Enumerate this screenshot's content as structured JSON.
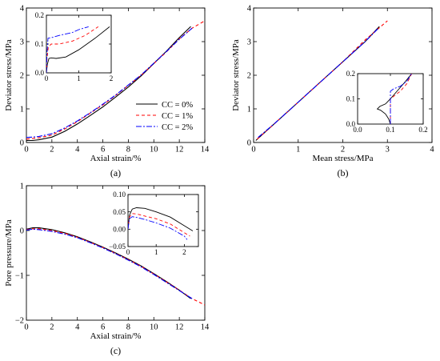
{
  "chart_data": [
    {
      "panel_label": "(a)",
      "type": "line",
      "xlabel": "Axial strain/%",
      "ylabel": "Deviator stress/MPa",
      "xlim": [
        0,
        14
      ],
      "ylim": [
        0,
        4
      ],
      "xticks": [
        "0",
        "2",
        "4",
        "6",
        "8",
        "10",
        "12",
        "14"
      ],
      "yticks": [
        "0",
        "1",
        "2",
        "3",
        "4"
      ],
      "legend_placement": "right-middle",
      "series": [
        {
          "name": "CC = 0%",
          "color": "#000000",
          "dash": "solid",
          "x": [
            0,
            0.5,
            1,
            2,
            3,
            4,
            5,
            6,
            7,
            8,
            9,
            10,
            11,
            12,
            12.9
          ],
          "y": [
            0.06,
            0.06,
            0.08,
            0.16,
            0.33,
            0.55,
            0.8,
            1.06,
            1.35,
            1.65,
            1.98,
            2.35,
            2.72,
            3.12,
            3.45
          ]
        },
        {
          "name": "CC = 1%",
          "color": "#ff0000",
          "dash": "dashed",
          "x": [
            0,
            0.5,
            1,
            2,
            3,
            4,
            5,
            6,
            7,
            8,
            9,
            10,
            11,
            12,
            13,
            14
          ],
          "y": [
            0.1,
            0.12,
            0.14,
            0.22,
            0.4,
            0.62,
            0.87,
            1.12,
            1.4,
            1.7,
            2.0,
            2.35,
            2.7,
            3.08,
            3.4,
            3.62
          ]
        },
        {
          "name": "CC = 2%",
          "color": "#0000ff",
          "dash": "dashdot",
          "x": [
            0,
            0.5,
            1,
            2,
            3,
            4,
            5,
            6,
            7,
            8,
            9,
            10,
            11,
            12,
            13
          ],
          "y": [
            0.15,
            0.16,
            0.18,
            0.26,
            0.43,
            0.64,
            0.88,
            1.14,
            1.41,
            1.71,
            2.01,
            2.36,
            2.71,
            3.07,
            3.4
          ]
        }
      ],
      "inset": {
        "xlim": [
          0,
          2
        ],
        "ylim": [
          0,
          0.2
        ],
        "xticks": [
          "0",
          "1",
          "2"
        ],
        "yticks": [
          "0.0",
          "0.1",
          "0.2"
        ],
        "series": [
          {
            "name": "CC = 0%",
            "x": [
              0,
              0.03,
              0.08,
              0.15,
              0.3,
              0.6,
              1.0,
              1.5,
              1.95
            ],
            "y": [
              0,
              0.03,
              0.05,
              0.052,
              0.05,
              0.055,
              0.08,
              0.12,
              0.16
            ]
          },
          {
            "name": "CC = 1%",
            "x": [
              0,
              0.02,
              0.06,
              0.15,
              0.4,
              0.8,
              1.2,
              1.6
            ],
            "y": [
              0,
              0.05,
              0.09,
              0.1,
              0.1,
              0.11,
              0.13,
              0.16
            ]
          },
          {
            "name": "CC = 2%",
            "x": [
              0,
              0.02,
              0.05,
              0.15,
              0.4,
              0.8,
              1.0,
              1.3
            ],
            "y": [
              0,
              0.07,
              0.12,
              0.122,
              0.13,
              0.14,
              0.15,
              0.16
            ]
          }
        ]
      }
    },
    {
      "panel_label": "(b)",
      "type": "line",
      "xlabel": "Mean stress/MPa",
      "ylabel": "Deviator stress/MPa",
      "xlim": [
        0,
        4
      ],
      "ylim": [
        0,
        4
      ],
      "xticks": [
        "0",
        "1",
        "2",
        "3",
        "4"
      ],
      "yticks": [
        "0",
        "1",
        "2",
        "3",
        "4"
      ],
      "series": [
        {
          "name": "CC = 0%",
          "x": [
            0.05,
            0.5,
            1.0,
            1.5,
            2.0,
            2.5,
            2.82
          ],
          "y": [
            0.06,
            0.6,
            1.2,
            1.8,
            2.4,
            3.0,
            3.45
          ]
        },
        {
          "name": "CC = 1%",
          "x": [
            0.08,
            0.5,
            1.0,
            1.5,
            2.0,
            2.5,
            3.0
          ],
          "y": [
            0.1,
            0.6,
            1.2,
            1.8,
            2.4,
            3.05,
            3.62
          ]
        },
        {
          "name": "CC = 2%",
          "x": [
            0.1,
            0.5,
            1.0,
            1.5,
            2.0,
            2.5,
            2.8
          ],
          "y": [
            0.15,
            0.6,
            1.2,
            1.8,
            2.4,
            3.0,
            3.4
          ]
        }
      ],
      "inset": {
        "xlim": [
          0,
          0.2
        ],
        "ylim": [
          0,
          0.2
        ],
        "xticks": [
          "0.0",
          "0.1",
          "0.2"
        ],
        "yticks": [
          "0.0",
          "0.1",
          "0.2"
        ],
        "series": [
          {
            "name": "CC = 0%",
            "x": [
              0.1,
              0.095,
              0.085,
              0.07,
              0.06,
              0.068,
              0.085,
              0.1,
              0.12,
              0.14,
              0.165
            ],
            "y": [
              0,
              0.02,
              0.04,
              0.055,
              0.06,
              0.07,
              0.08,
              0.1,
              0.13,
              0.16,
              0.2
            ]
          },
          {
            "name": "CC = 1%",
            "x": [
              0.1,
              0.1,
              0.1,
              0.11,
              0.13,
              0.15,
              0.165
            ],
            "y": [
              0,
              0.05,
              0.1,
              0.11,
              0.13,
              0.16,
              0.2
            ]
          },
          {
            "name": "CC = 2%",
            "x": [
              0.1,
              0.1,
              0.1,
              0.11,
              0.13,
              0.15,
              0.165
            ],
            "y": [
              0,
              0.08,
              0.13,
              0.14,
              0.15,
              0.17,
              0.2
            ]
          }
        ]
      }
    },
    {
      "panel_label": "(c)",
      "type": "line",
      "xlabel": "Axial strain/%",
      "ylabel": "Pore pressure/MPa",
      "xlim": [
        0,
        14
      ],
      "ylim": [
        -2,
        1
      ],
      "xticks": [
        "0",
        "2",
        "4",
        "6",
        "8",
        "10",
        "12",
        "14"
      ],
      "yticks": [
        "-2",
        "-1",
        "0",
        "1"
      ],
      "series": [
        {
          "name": "CC = 0%",
          "x": [
            0,
            0.5,
            1,
            2,
            3,
            4,
            5,
            6,
            7,
            8,
            9,
            10,
            11,
            12,
            12.9
          ],
          "y": [
            0.03,
            0.06,
            0.06,
            0.02,
            -0.05,
            -0.14,
            -0.25,
            -0.37,
            -0.5,
            -0.64,
            -0.79,
            -0.96,
            -1.14,
            -1.33,
            -1.52
          ]
        },
        {
          "name": "CC = 1%",
          "x": [
            0,
            0.5,
            1,
            2,
            3,
            4,
            5,
            6,
            7,
            8,
            9,
            10,
            11,
            12,
            13,
            14
          ],
          "y": [
            0.02,
            0.04,
            0.04,
            0.0,
            -0.06,
            -0.15,
            -0.26,
            -0.38,
            -0.51,
            -0.65,
            -0.8,
            -0.97,
            -1.15,
            -1.33,
            -1.52,
            -1.66
          ]
        },
        {
          "name": "CC = 2%",
          "x": [
            0,
            0.5,
            1,
            2,
            3,
            4,
            5,
            6,
            7,
            8,
            9,
            10,
            11,
            12,
            13
          ],
          "y": [
            0.01,
            0.03,
            0.02,
            -0.02,
            -0.08,
            -0.16,
            -0.27,
            -0.39,
            -0.52,
            -0.66,
            -0.81,
            -0.98,
            -1.16,
            -1.34,
            -1.52
          ]
        }
      ],
      "inset": {
        "xlim": [
          0,
          2.5
        ],
        "ylim": [
          -0.05,
          0.1
        ],
        "xticks": [
          "0",
          "1",
          "2"
        ],
        "yticks": [
          "-0.05",
          "0.00",
          "0.05",
          "0.10"
        ],
        "series": [
          {
            "name": "CC = 0%",
            "x": [
              0,
              0.05,
              0.15,
              0.3,
              0.6,
              1.0,
              1.5,
              2.0,
              2.3
            ],
            "y": [
              0.0,
              0.04,
              0.058,
              0.062,
              0.06,
              0.05,
              0.035,
              0.01,
              -0.005
            ]
          },
          {
            "name": "CC = 1%",
            "x": [
              0,
              0.05,
              0.15,
              0.3,
              0.6,
              1.0,
              1.5,
              2.0,
              2.2
            ],
            "y": [
              0.0,
              0.035,
              0.045,
              0.044,
              0.038,
              0.03,
              0.015,
              -0.01,
              -0.02
            ]
          },
          {
            "name": "CC = 2%",
            "x": [
              0,
              0.05,
              0.15,
              0.3,
              0.6,
              1.0,
              1.5,
              2.0,
              2.1
            ],
            "y": [
              0.0,
              0.03,
              0.036,
              0.034,
              0.028,
              0.018,
              0.003,
              -0.02,
              -0.03
            ]
          }
        ]
      }
    }
  ]
}
